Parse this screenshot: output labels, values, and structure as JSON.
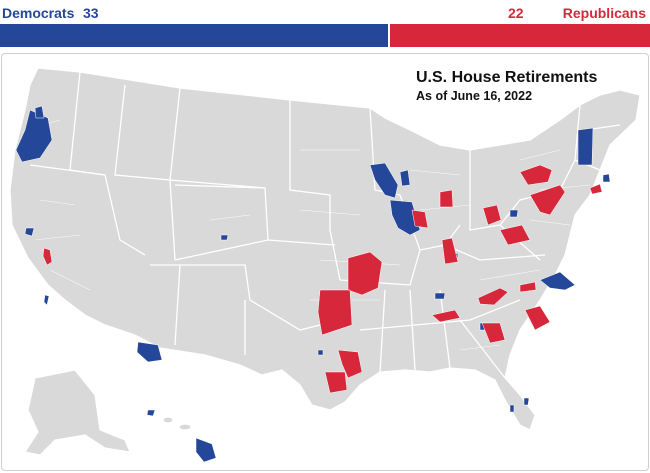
{
  "header": {
    "dem_label": "Democrats",
    "dem_count": "33",
    "rep_count": "22",
    "rep_label": "Republicans"
  },
  "bar": {
    "democrats": 33,
    "republicans": 22
  },
  "map": {
    "title": "U.S. House Retirements",
    "subtitle": "As of June 16, 2022"
  },
  "colors": {
    "democrat": "#24479a",
    "republican": "#d6283a",
    "land": "#d9d9d9",
    "border": "#ffffff",
    "frame": "#cfcfcf"
  }
}
